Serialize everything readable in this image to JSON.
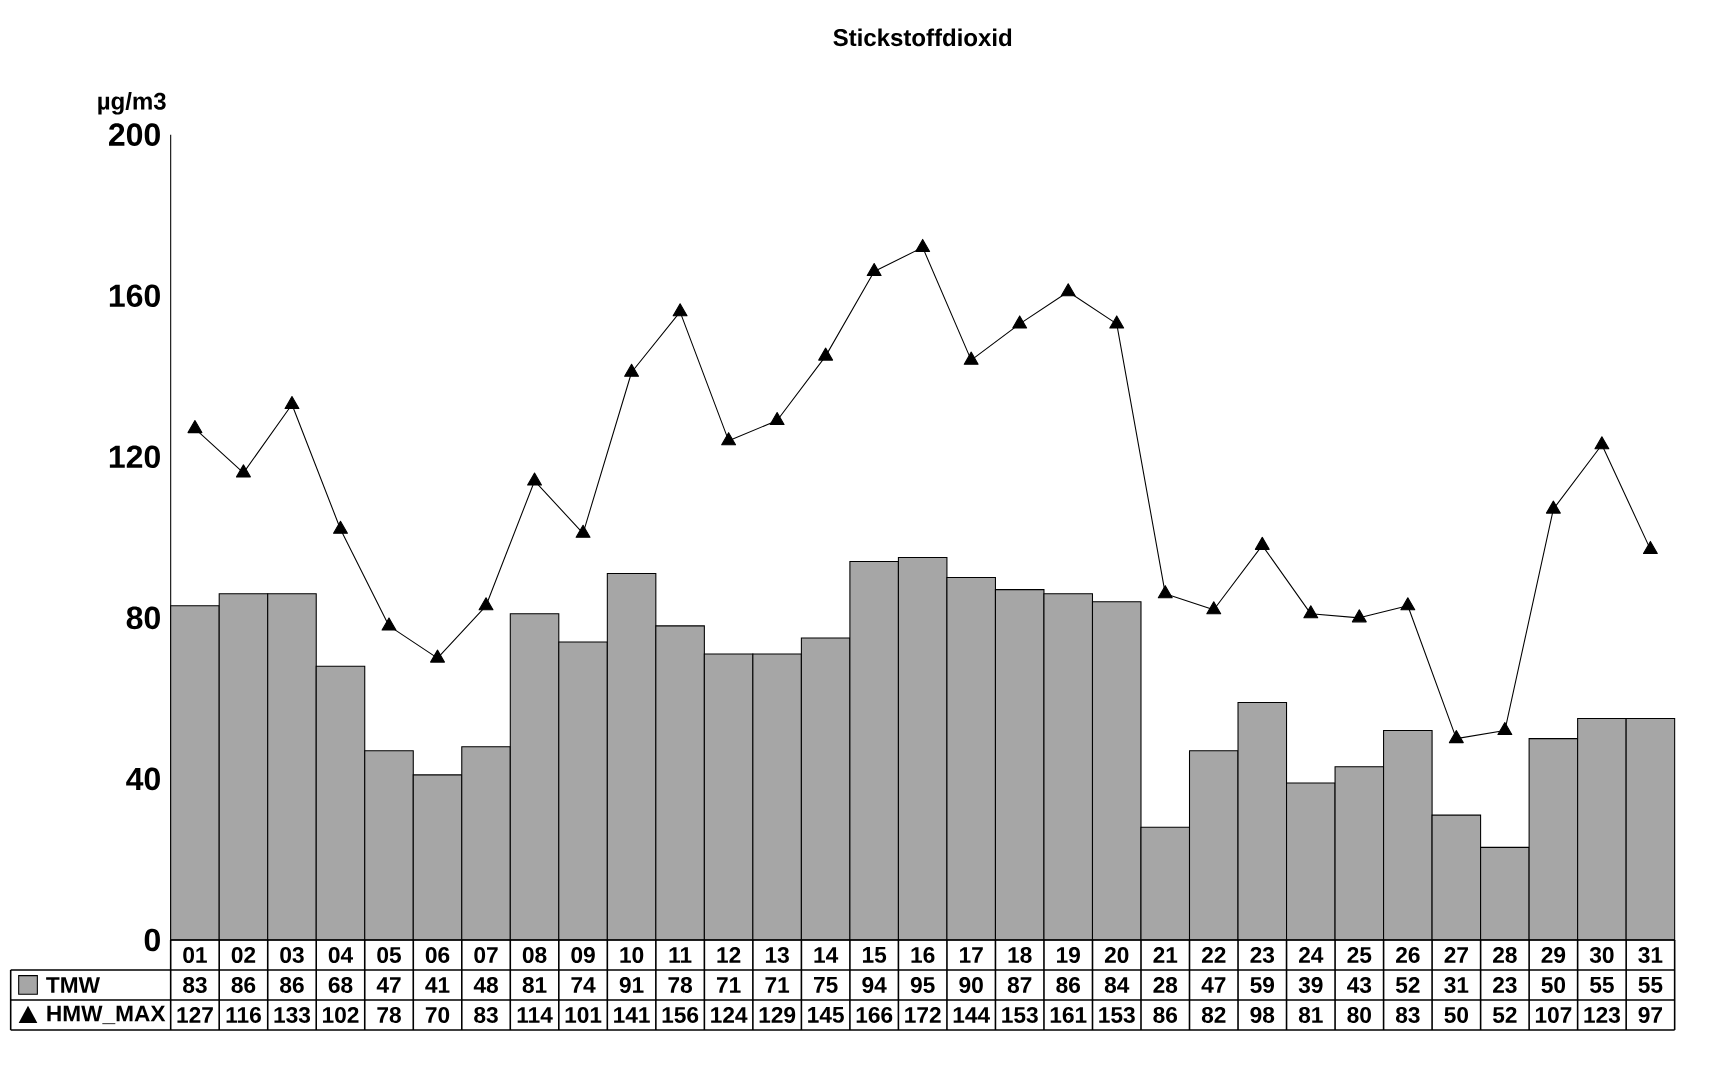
{
  "chart_data": {
    "type": "bar",
    "title": "Stickstoffdioxid",
    "ylabel": "µg/m3",
    "categories": [
      "01",
      "02",
      "03",
      "04",
      "05",
      "06",
      "07",
      "08",
      "09",
      "10",
      "11",
      "12",
      "13",
      "14",
      "15",
      "16",
      "17",
      "18",
      "19",
      "20",
      "21",
      "22",
      "23",
      "24",
      "25",
      "26",
      "27",
      "28",
      "29",
      "30",
      "31"
    ],
    "series": [
      {
        "name": "TMW",
        "color": "#a6a6a6",
        "values": [
          83,
          86,
          86,
          68,
          47,
          41,
          48,
          81,
          74,
          91,
          78,
          71,
          71,
          75,
          94,
          95,
          90,
          87,
          86,
          84,
          28,
          47,
          59,
          39,
          43,
          52,
          31,
          23,
          50,
          55,
          55
        ]
      },
      {
        "name": "HMW_MAX",
        "type": "line",
        "color": "#000000",
        "marker": "triangle",
        "line_style": "solid",
        "values": [
          127,
          116,
          133,
          102,
          78,
          70,
          83,
          114,
          101,
          141,
          156,
          124,
          129,
          145,
          166,
          172,
          144,
          153,
          161,
          153,
          86,
          82,
          98,
          81,
          80,
          83,
          50,
          52,
          107,
          123,
          97
        ]
      }
    ],
    "ylim": [
      0,
      200
    ],
    "yticks": [
      0,
      40,
      80,
      120,
      160,
      200
    ],
    "data_labels": true,
    "grid": false,
    "legend": "bottom left"
  }
}
